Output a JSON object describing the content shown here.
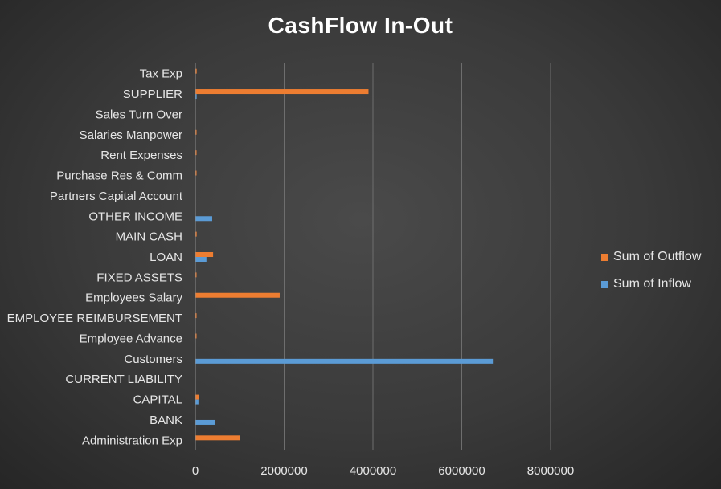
{
  "chart_data": {
    "type": "bar",
    "orientation": "horizontal",
    "title": "CashFlow In-Out",
    "xlabel": "",
    "ylabel": "",
    "xlim": [
      0,
      8000000
    ],
    "xticks": [
      "0",
      "2000000",
      "4000000",
      "6000000",
      "8000000"
    ],
    "grid": true,
    "legend_position": "right",
    "categories": [
      "Administration Exp",
      "BANK",
      "CAPITAL",
      "CURRENT LIABILITY",
      "Customers",
      "Employee Advance",
      "EMPLOYEE REIMBURSEMENT",
      "Employees Salary",
      "FIXED ASSETS",
      "LOAN",
      "MAIN CASH",
      "OTHER INCOME",
      "Partners Capital Account",
      "Purchase Res & Comm",
      "Rent Expenses",
      "Salaries Manpower",
      "Sales Turn Over",
      "SUPPLIER",
      "Tax Exp"
    ],
    "series": [
      {
        "name": "Sum of Outflow",
        "color": "#ed7d31",
        "values": [
          1000000,
          0,
          80000,
          0,
          0,
          15000,
          10000,
          1900000,
          5000,
          400000,
          30000,
          0,
          0,
          15000,
          10000,
          10000,
          0,
          3900000,
          30000
        ]
      },
      {
        "name": "Sum of Inflow",
        "color": "#5b9bd5",
        "values": [
          0,
          450000,
          70000,
          0,
          6700000,
          0,
          0,
          0,
          0,
          250000,
          0,
          380000,
          0,
          0,
          0,
          0,
          0,
          30000,
          0
        ]
      }
    ]
  },
  "legend": [
    {
      "name": "Sum of Outflow",
      "color": "#ed7d31"
    },
    {
      "name": "Sum of Inflow",
      "color": "#5b9bd5"
    }
  ]
}
